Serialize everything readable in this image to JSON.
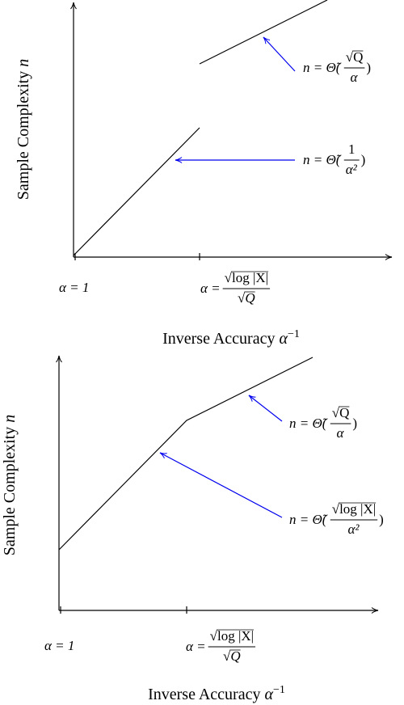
{
  "panels": [
    {
      "y_label": {
        "text": "Sample Complexity",
        "var": "n"
      },
      "x_label": {
        "text": "Inverse Accuracy",
        "var": "α",
        "sup": "−1"
      },
      "tick_1": "α = 1",
      "tick_2": {
        "lhs": "α =",
        "num": "√log |X|",
        "den": "√Q"
      },
      "annotations": [
        {
          "lhs": "n = Θ̃(",
          "num": "√Q",
          "den": "α",
          "rhs": ")"
        },
        {
          "lhs": "n = Θ̃(",
          "num": "1",
          "den": "α²",
          "rhs": ")"
        }
      ]
    },
    {
      "y_label": {
        "text": "Sample Complexity",
        "var": "n"
      },
      "x_label": {
        "text": "Inverse Accuracy",
        "var": "α",
        "sup": "−1"
      },
      "tick_1": "α = 1",
      "tick_2": {
        "lhs": "α =",
        "num": "√log |X|",
        "den": "√Q"
      },
      "annotations": [
        {
          "lhs": "n = Θ̃(",
          "num": "√Q",
          "den": "α",
          "rhs": ")"
        },
        {
          "lhs": "n = Θ̃(",
          "num": "√log |X|",
          "den": "α²",
          "rhs": ")"
        }
      ]
    }
  ]
}
